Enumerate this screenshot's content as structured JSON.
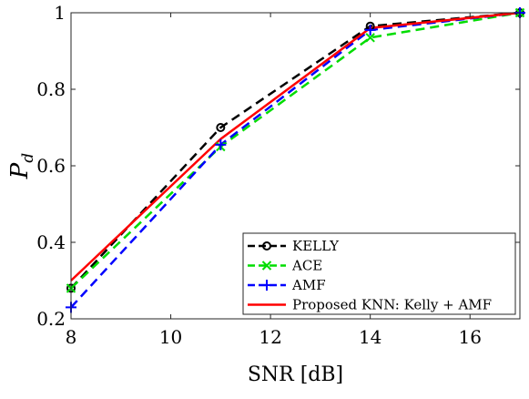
{
  "chart_data": {
    "type": "line",
    "xlabel": "SNR [dB]",
    "ylabel_main": "P",
    "ylabel_sub": "d",
    "xlim": [
      8,
      17
    ],
    "ylim": [
      0.2,
      1.0
    ],
    "xticks": [
      8,
      10,
      12,
      14,
      16
    ],
    "yticks": [
      0.2,
      0.4,
      0.6,
      0.8,
      1
    ],
    "xtick_labels": [
      "8",
      "10",
      "12",
      "14",
      "16"
    ],
    "ytick_labels": [
      "0.2",
      "0.4",
      "0.6",
      "0.8",
      "1"
    ],
    "grid": false,
    "legend_position": "bottom-right",
    "x": [
      8,
      11,
      14,
      17
    ],
    "series": [
      {
        "name": "KELLY",
        "values": [
          0.28,
          0.7,
          0.965,
          1.0
        ],
        "color": "#000000",
        "dash": "dashed",
        "marker": "circle"
      },
      {
        "name": "ACE",
        "values": [
          0.28,
          0.65,
          0.935,
          1.0
        ],
        "color": "#00dd00",
        "dash": "dashed",
        "marker": "x"
      },
      {
        "name": "AMF",
        "values": [
          0.23,
          0.655,
          0.955,
          1.0
        ],
        "color": "#0000ff",
        "dash": "dashed",
        "marker": "plus"
      },
      {
        "name": "Proposed KNN: Kelly + AMF",
        "values": [
          0.3,
          0.67,
          0.96,
          1.0
        ],
        "color": "#ff0000",
        "dash": "solid",
        "marker": "none"
      }
    ]
  }
}
